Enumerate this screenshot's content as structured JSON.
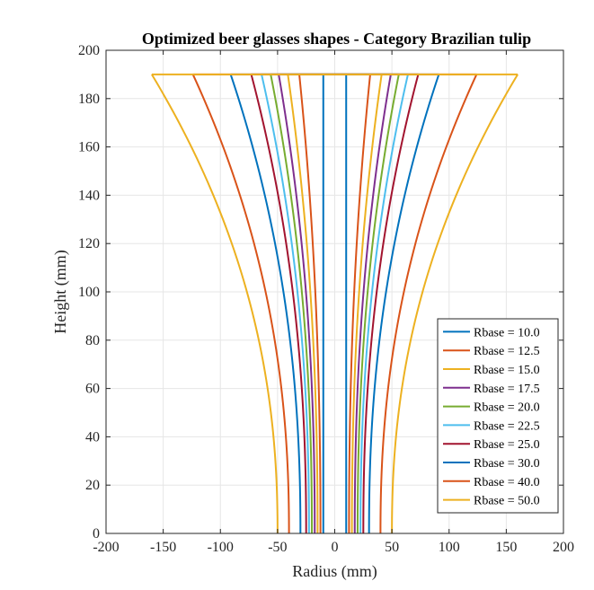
{
  "chart_data": {
    "type": "line",
    "title": "Optimized beer glasses shapes - Category Brazilian tulip",
    "xlabel": "Radius (mm)",
    "ylabel": "Height (mm)",
    "xlim": [
      -200,
      200
    ],
    "ylim": [
      0,
      200
    ],
    "xticks": [
      "-200",
      "-150",
      "-100",
      "-50",
      "0",
      "50",
      "100",
      "150",
      "200"
    ],
    "yticks": [
      "0",
      "20",
      "40",
      "60",
      "80",
      "100",
      "120",
      "140",
      "160",
      "180",
      "200"
    ],
    "grid": true,
    "legend_position": "lower-right",
    "height_mm": 190,
    "profile_shape": "mirrored flaring curve from base radius to top radius, closed by a horizontal rim line at the top",
    "series": [
      {
        "name": "Rbase = 10.0",
        "color": "#0072BD",
        "base_radius": 10.0,
        "top_radius": 10.0
      },
      {
        "name": "Rbase = 12.5",
        "color": "#D95319",
        "base_radius": 12.5,
        "top_radius": 31.0
      },
      {
        "name": "Rbase = 15.0",
        "color": "#EDB120",
        "base_radius": 15.0,
        "top_radius": 41.0
      },
      {
        "name": "Rbase = 17.5",
        "color": "#7E2F8E",
        "base_radius": 17.5,
        "top_radius": 49.0
      },
      {
        "name": "Rbase = 20.0",
        "color": "#77AC30",
        "base_radius": 20.0,
        "top_radius": 56.0
      },
      {
        "name": "Rbase = 22.5",
        "color": "#4DBEEE",
        "base_radius": 22.5,
        "top_radius": 64.0
      },
      {
        "name": "Rbase = 25.0",
        "color": "#A2142F",
        "base_radius": 25.0,
        "top_radius": 73.0
      },
      {
        "name": "Rbase = 30.0",
        "color": "#0072BD",
        "base_radius": 30.0,
        "top_radius": 91.0
      },
      {
        "name": "Rbase = 40.0",
        "color": "#D95319",
        "base_radius": 40.0,
        "top_radius": 124.0
      },
      {
        "name": "Rbase = 50.0",
        "color": "#EDB120",
        "base_radius": 50.0,
        "top_radius": 160.0
      }
    ]
  }
}
